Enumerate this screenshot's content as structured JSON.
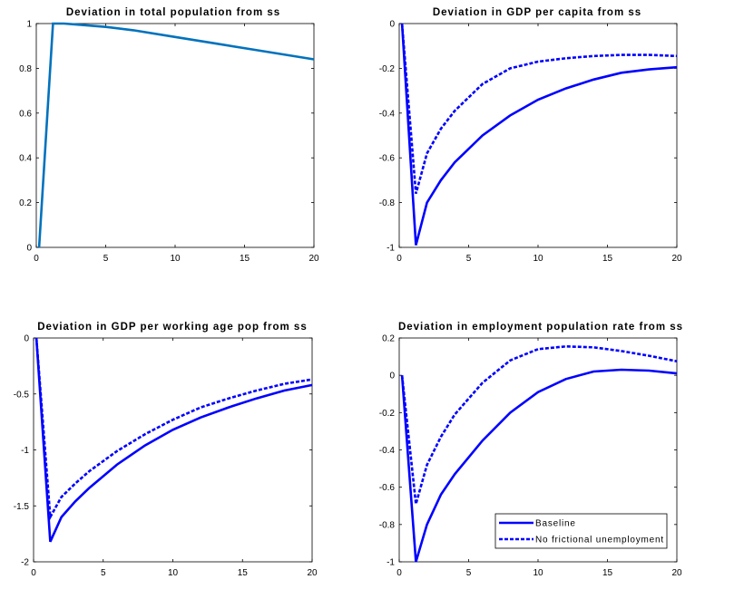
{
  "chart_data": [
    {
      "type": "line",
      "title": "Deviation in total population from ss",
      "xlim": [
        0,
        20
      ],
      "ylim": [
        0,
        1
      ],
      "xticks": [
        0,
        5,
        10,
        15,
        20
      ],
      "xtick_labels": [
        "0",
        "5",
        "10",
        "15",
        "20"
      ],
      "yticks": [
        0,
        0.2,
        0.4,
        0.6,
        0.8,
        1
      ],
      "ytick_labels": [
        "0",
        "0.2",
        "0.4",
        "0.6",
        "0.8",
        "1"
      ],
      "series": [
        {
          "color": "#0072bd",
          "style": "solid",
          "x": [
            0.2,
            1.2,
            2,
            3,
            5,
            7,
            10,
            13,
            16,
            20
          ],
          "y": [
            0,
            1,
            1,
            0.995,
            0.985,
            0.97,
            0.94,
            0.91,
            0.88,
            0.84
          ]
        }
      ]
    },
    {
      "type": "line",
      "title": "Deviation in GDP per capita from ss",
      "xlim": [
        0,
        20
      ],
      "ylim": [
        -1,
        0
      ],
      "xticks": [
        0,
        5,
        10,
        15,
        20
      ],
      "xtick_labels": [
        "0",
        "5",
        "10",
        "15",
        "20"
      ],
      "yticks": [
        -1,
        -0.8,
        -0.6,
        -0.4,
        -0.2,
        0
      ],
      "ytick_labels": [
        "-1",
        "-0.8",
        "-0.6",
        "-0.4",
        "-0.2",
        "0"
      ],
      "series": [
        {
          "color": "#0000ff",
          "style": "solid",
          "x": [
            0.2,
            1.2,
            2,
            3,
            4,
            6,
            8,
            10,
            12,
            14,
            16,
            18,
            20
          ],
          "y": [
            0,
            -0.99,
            -0.8,
            -0.7,
            -0.62,
            -0.5,
            -0.41,
            -0.34,
            -0.29,
            -0.25,
            -0.22,
            -0.205,
            -0.195
          ]
        },
        {
          "color": "#0000ff",
          "style": "dashed",
          "x": [
            0.2,
            1.2,
            2,
            3,
            4,
            6,
            8,
            10,
            12,
            14,
            16,
            18,
            20
          ],
          "y": [
            0,
            -0.76,
            -0.58,
            -0.47,
            -0.39,
            -0.27,
            -0.2,
            -0.17,
            -0.155,
            -0.145,
            -0.14,
            -0.14,
            -0.145
          ]
        }
      ]
    },
    {
      "type": "line",
      "title": "Deviation in GDP per working age pop from ss",
      "xlim": [
        0,
        20
      ],
      "ylim": [
        -2,
        0
      ],
      "xticks": [
        0,
        5,
        10,
        15,
        20
      ],
      "xtick_labels": [
        "0",
        "5",
        "10",
        "15",
        "20"
      ],
      "yticks": [
        -2,
        -1.5,
        -1,
        -0.5,
        0
      ],
      "ytick_labels": [
        "-2",
        "-1.5",
        "-1",
        "-0.5",
        "0"
      ],
      "series": [
        {
          "color": "#0000ff",
          "style": "solid",
          "x": [
            0.2,
            1.2,
            2,
            3,
            4,
            6,
            8,
            10,
            12,
            14,
            16,
            18,
            20
          ],
          "y": [
            0,
            -1.82,
            -1.6,
            -1.46,
            -1.34,
            -1.13,
            -0.96,
            -0.82,
            -0.71,
            -0.62,
            -0.54,
            -0.47,
            -0.42
          ]
        },
        {
          "color": "#0000ff",
          "style": "dashed",
          "x": [
            0.2,
            1.2,
            2,
            3,
            4,
            6,
            8,
            10,
            12,
            14,
            16,
            18,
            20
          ],
          "y": [
            0,
            -1.6,
            -1.42,
            -1.3,
            -1.19,
            -1.01,
            -0.86,
            -0.73,
            -0.62,
            -0.54,
            -0.47,
            -0.41,
            -0.37
          ]
        }
      ]
    },
    {
      "type": "line",
      "title": "Deviation in employment population rate from ss",
      "xlim": [
        0,
        20
      ],
      "ylim": [
        -1,
        0.2
      ],
      "xticks": [
        0,
        5,
        10,
        15,
        20
      ],
      "xtick_labels": [
        "0",
        "5",
        "10",
        "15",
        "20"
      ],
      "yticks": [
        -1,
        -0.8,
        -0.6,
        -0.4,
        -0.2,
        0,
        0.2
      ],
      "ytick_labels": [
        "-1",
        "-0.8",
        "-0.6",
        "-0.4",
        "-0.2",
        "0",
        "0.2"
      ],
      "legend": {
        "position": "bottom-right",
        "entries": [
          "Baseline",
          "No frictional unemployment"
        ]
      },
      "series": [
        {
          "name": "Baseline",
          "color": "#0000ff",
          "style": "solid",
          "x": [
            0.2,
            1.2,
            2,
            3,
            4,
            6,
            8,
            10,
            12,
            14,
            16,
            18,
            20
          ],
          "y": [
            0,
            -1,
            -0.8,
            -0.64,
            -0.53,
            -0.35,
            -0.2,
            -0.09,
            -0.02,
            0.02,
            0.03,
            0.025,
            0.01
          ]
        },
        {
          "name": "No frictional unemployment",
          "color": "#0000ff",
          "style": "dashed",
          "x": [
            0.2,
            1.2,
            2,
            3,
            4,
            6,
            8,
            10,
            12,
            14,
            16,
            18,
            20
          ],
          "y": [
            0,
            -0.69,
            -0.48,
            -0.33,
            -0.21,
            -0.04,
            0.08,
            0.14,
            0.155,
            0.15,
            0.13,
            0.105,
            0.075
          ]
        }
      ]
    }
  ]
}
